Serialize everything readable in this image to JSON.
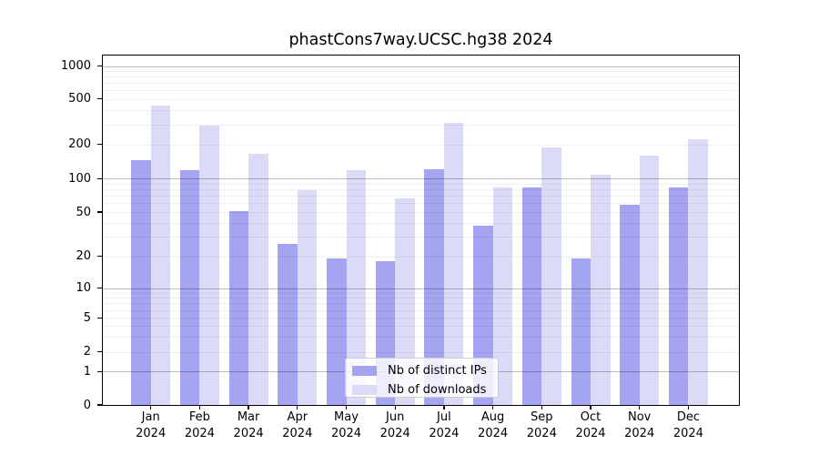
{
  "title": "phastCons7way.UCSC.hg38 2024",
  "chart_data": {
    "type": "bar",
    "categories": [
      "Jan",
      "Feb",
      "Mar",
      "Apr",
      "May",
      "Jun",
      "Jul",
      "Aug",
      "Sep",
      "Oct",
      "Nov",
      "Dec"
    ],
    "year_label": "2024",
    "series": [
      {
        "name": "Nb of distinct IPs",
        "color": "#a4a4f1",
        "values": [
          146,
          119,
          51,
          26,
          19,
          18,
          122,
          38,
          84,
          19,
          58,
          84
        ]
      },
      {
        "name": "Nb of downloads",
        "color": "#dbdbf8",
        "values": [
          440,
          290,
          165,
          78,
          119,
          66,
          310,
          84,
          190,
          108,
          160,
          224
        ]
      }
    ],
    "y_ticks": [
      0,
      1,
      2,
      5,
      10,
      20,
      50,
      100,
      200,
      500,
      1000
    ],
    "yscale": "symlog",
    "ylim": [
      0,
      1260
    ],
    "grid": true,
    "legend_position": "bottom-center"
  }
}
